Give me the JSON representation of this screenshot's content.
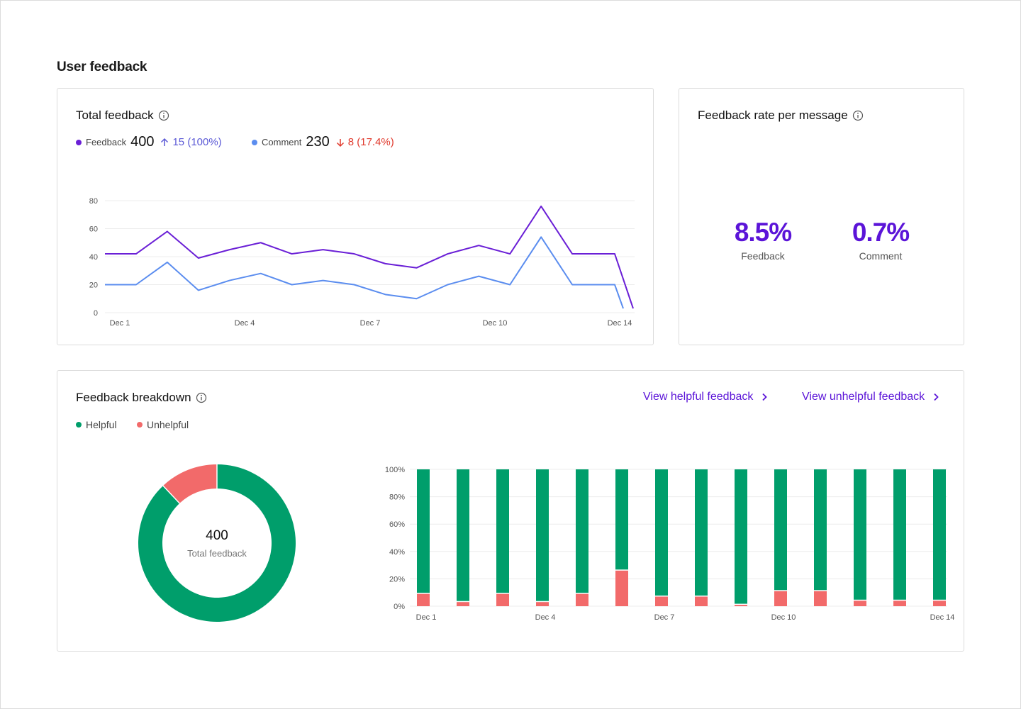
{
  "page": {
    "title": "User feedback"
  },
  "total_feedback": {
    "title": "Total feedback",
    "legend": [
      {
        "label": "Feedback",
        "value": "400",
        "delta": "15 (100%)",
        "direction": "up",
        "color": "#6a1fd6",
        "delta_color": "#5b59d6"
      },
      {
        "label": "Comment",
        "value": "230",
        "delta": "8 (17.4%)",
        "direction": "down",
        "color": "#5b8def",
        "delta_color": "#e0382b"
      }
    ]
  },
  "rate_card": {
    "title": "Feedback rate per message",
    "items": [
      {
        "value": "8.5%",
        "label": "Feedback"
      },
      {
        "value": "0.7%",
        "label": "Comment"
      }
    ]
  },
  "breakdown": {
    "title": "Feedback breakdown",
    "links": {
      "helpful": "View helpful feedback",
      "unhelpful": "View unhelpful feedback"
    },
    "legend": [
      {
        "label": "Helpful",
        "color": "#009e6b"
      },
      {
        "label": "Unhelpful",
        "color": "#f26a6a"
      }
    ],
    "donut": {
      "value": "400",
      "label": "Total feedback"
    }
  },
  "chart_data": [
    {
      "type": "line",
      "ylim": [
        0,
        80
      ],
      "y_ticks": [
        "0",
        "20",
        "40",
        "60",
        "80"
      ],
      "x_tick_labels": [
        "Dec 1",
        "Dec 4",
        "Dec 7",
        "Dec 10",
        "Dec 14"
      ],
      "grid": true,
      "series": [
        {
          "name": "Feedback",
          "color": "#6a1fd6",
          "values": [
            42,
            42,
            58,
            39,
            45,
            50,
            42,
            45,
            42,
            35,
            32,
            42,
            48,
            42,
            76,
            42,
            42,
            3
          ]
        },
        {
          "name": "Comment",
          "color": "#5b8def",
          "values": [
            20,
            20,
            36,
            16,
            23,
            28,
            20,
            23,
            20,
            13,
            10,
            20,
            26,
            20,
            54,
            20,
            20,
            3
          ]
        }
      ]
    },
    {
      "type": "pie",
      "categories": [
        "Helpful",
        "Unhelpful"
      ],
      "values": [
        88,
        12
      ],
      "colors": [
        "#009e6b",
        "#f26a6a"
      ]
    },
    {
      "type": "bar",
      "stacked": true,
      "ylim": [
        0,
        100
      ],
      "y_ticks": [
        "0%",
        "20%",
        "40%",
        "60%",
        "80%",
        "100%"
      ],
      "categories": [
        "Dec 1",
        "Dec 2",
        "Dec 3",
        "Dec 4",
        "Dec 5",
        "Dec 6",
        "Dec 7",
        "Dec 8",
        "Dec 9",
        "Dec 10",
        "Dec 11",
        "Dec 12",
        "Dec 13",
        "Dec 14"
      ],
      "x_tick_labels": {
        "Dec 1": "Dec 1",
        "Dec 4": "Dec 4",
        "Dec 7": "Dec 7",
        "Dec 10": "Dec 10",
        "Dec 14": "Dec 14"
      },
      "series": [
        {
          "name": "Unhelpful",
          "color": "#f26a6a",
          "values": [
            9,
            3,
            9,
            3,
            9,
            26,
            7,
            7,
            1,
            11,
            11,
            4,
            4,
            4
          ]
        },
        {
          "name": "Helpful",
          "color": "#009e6b",
          "values": [
            91,
            97,
            91,
            97,
            91,
            74,
            93,
            93,
            99,
            89,
            89,
            96,
            96,
            96
          ]
        }
      ]
    }
  ]
}
